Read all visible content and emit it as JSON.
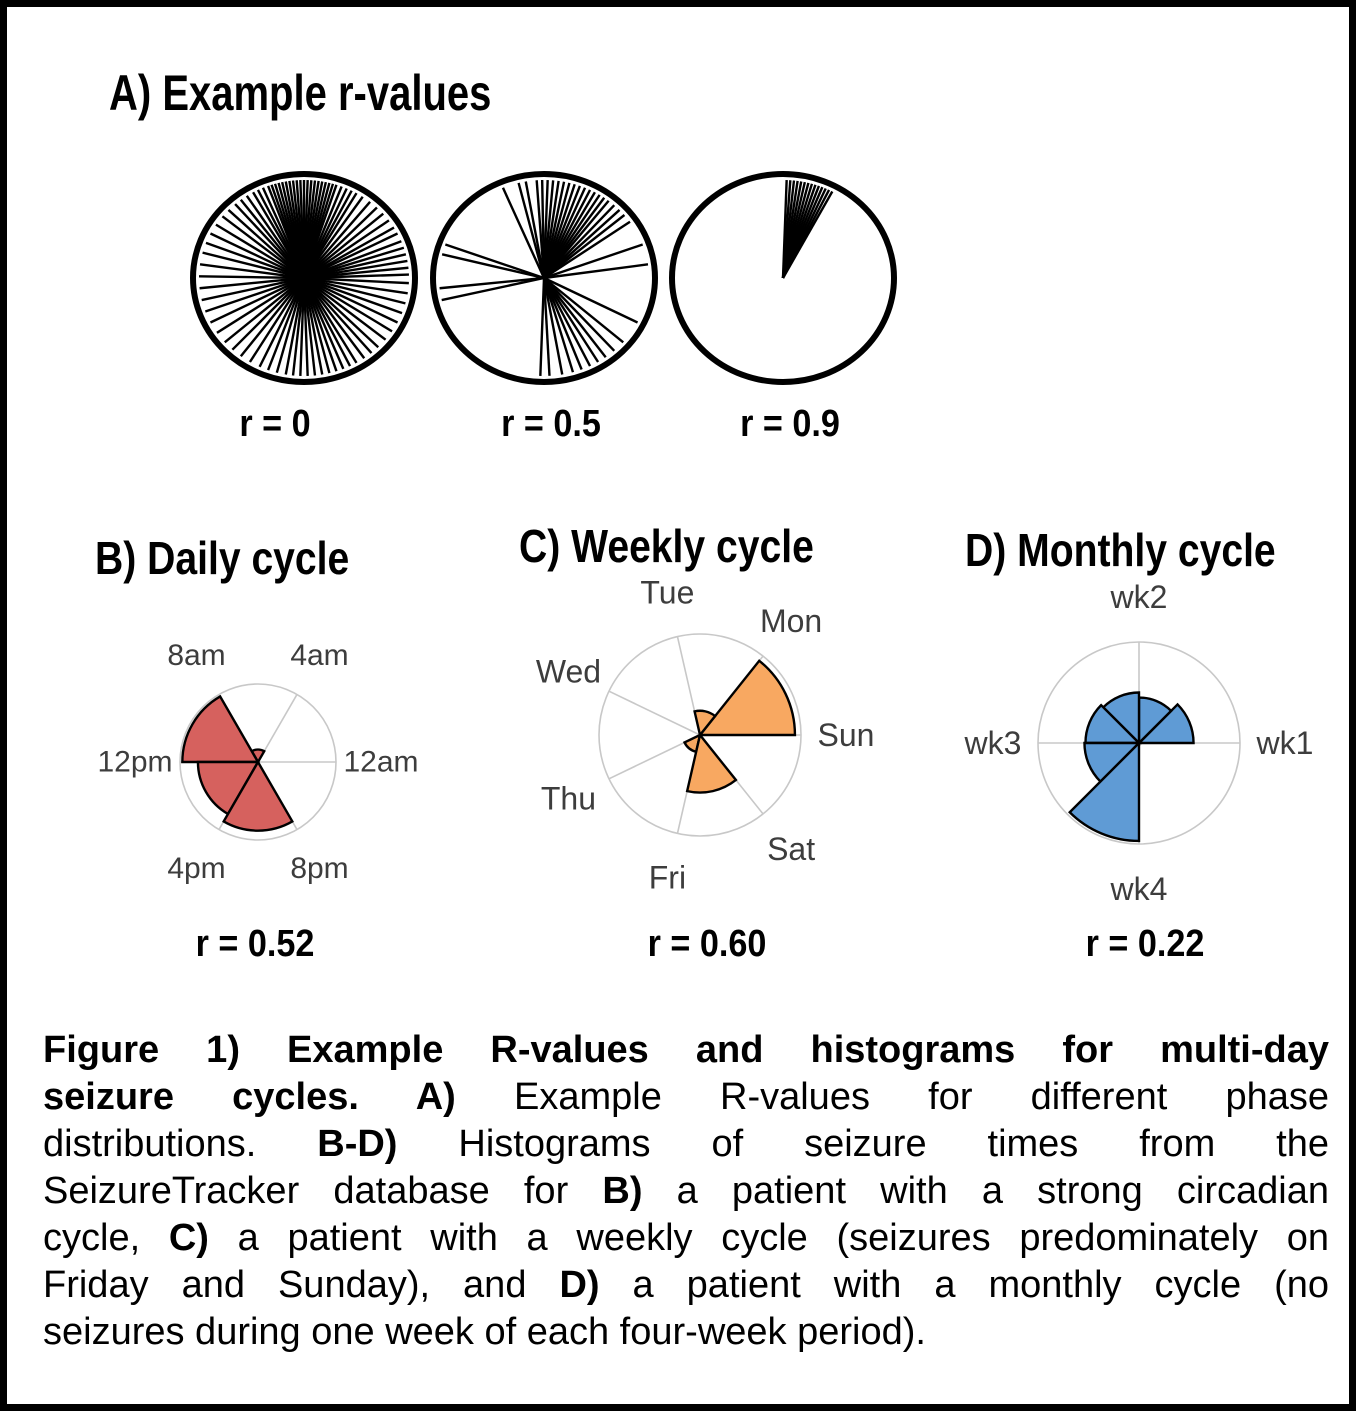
{
  "figure": {
    "colors": {
      "grid": "#c8c8c8",
      "outline": "#000000",
      "axis_label": "#3d3d3d",
      "daily_fill": "#d6615e",
      "weekly_fill": "#f8a861",
      "monthly_fill": "#5f9bd5"
    },
    "caption": {
      "full_text": "Figure 1) Example R-values and histograms for multi-day seizure cycles. A) Example R-values for different phase distributions. B-D) Histograms of seizure times from the SeizureTracker database for B) a patient with a strong circadian cycle, C) a patient with a weekly cycle (seizures predominately on Friday and Sunday), and D) a patient with a monthly cycle (no seizures during one week of each four-week period).",
      "lines": [
        {
          "segments": [
            {
              "text": "Figure 1) Example R-values and histograms for multi-day",
              "bold": true
            }
          ]
        },
        {
          "segments": [
            {
              "text": "seizure cycles. A) ",
              "bold": true
            },
            {
              "text": "Example R-values for different phase",
              "bold": false
            }
          ]
        },
        {
          "segments": [
            {
              "text": "distributions. ",
              "bold": false
            },
            {
              "text": "B-D) ",
              "bold": true
            },
            {
              "text": "Histograms of seizure times from the",
              "bold": false
            }
          ]
        },
        {
          "segments": [
            {
              "text": "SeizureTracker database for ",
              "bold": false
            },
            {
              "text": "B) ",
              "bold": true
            },
            {
              "text": "a patient with a strong circadian",
              "bold": false
            }
          ]
        },
        {
          "segments": [
            {
              "text": "cycle, ",
              "bold": false
            },
            {
              "text": "C) ",
              "bold": true
            },
            {
              "text": "a patient with a weekly cycle (seizures predominately on",
              "bold": false
            }
          ]
        },
        {
          "segments": [
            {
              "text": "Friday and Sunday), and ",
              "bold": false
            },
            {
              "text": "D) ",
              "bold": true
            },
            {
              "text": "a patient with a monthly cycle (no",
              "bold": false
            }
          ]
        },
        {
          "segments": [
            {
              "text": "seizures during one week of each four-week period).",
              "bold": false
            }
          ]
        }
      ]
    }
  },
  "chart_data": [
    {
      "id": "example-r-values",
      "type": "circular-phase-plot",
      "title": "A) Example r-values",
      "description": "Three circles with radial phase lines showing increasing phase concentration",
      "plots": [
        {
          "label": "r = 0",
          "r_value": 0,
          "line_angles_deg": [
            2,
            6,
            10,
            14,
            18,
            22,
            27,
            31,
            36,
            41,
            46,
            51,
            56,
            60,
            63,
            66,
            69,
            72,
            74,
            76,
            78,
            80,
            82,
            84,
            86,
            88,
            90,
            92,
            94,
            96,
            98,
            100,
            102,
            104,
            106,
            108,
            110,
            113,
            116,
            119,
            123,
            127,
            131,
            136,
            141,
            147,
            153,
            159,
            165,
            172,
            179,
            186,
            193,
            200,
            207,
            214,
            221,
            227,
            233,
            239,
            245,
            250,
            255,
            260,
            264,
            268,
            272,
            276,
            280,
            284,
            288,
            292,
            296,
            300,
            305,
            310,
            315,
            321,
            327,
            333,
            339,
            345,
            351,
            357
          ]
        },
        {
          "label": "r = 0.5",
          "r_value": 0.5,
          "line_angles_deg": [
            8,
            20,
            35,
            40,
            44,
            48,
            52,
            55,
            58,
            61,
            64,
            67,
            70,
            73,
            76,
            79,
            82,
            85,
            88,
            91,
            94,
            100,
            104,
            113,
            160,
            166,
            186,
            193,
            268,
            273,
            280,
            286,
            291,
            296,
            301,
            306,
            312,
            319,
            333
          ]
        },
        {
          "label": "r = 0.9",
          "r_value": 0.9,
          "line_angles_deg": [
            62,
            64,
            66,
            68,
            70,
            72,
            74,
            76,
            78,
            80,
            82,
            84,
            86,
            88
          ]
        }
      ]
    },
    {
      "id": "daily-cycle",
      "type": "rose",
      "title": "B) Daily cycle",
      "r_label": "r = 0.52",
      "r_value": 0.52,
      "fill": "#d6615e",
      "axis_labels": [
        {
          "text": "12am",
          "angle_deg": 0
        },
        {
          "text": "4am",
          "angle_deg": 60
        },
        {
          "text": "8am",
          "angle_deg": 120
        },
        {
          "text": "12pm",
          "angle_deg": 180
        },
        {
          "text": "4pm",
          "angle_deg": 240
        },
        {
          "text": "8pm",
          "angle_deg": 300
        }
      ],
      "bins": [
        {
          "start_deg": 0,
          "end_deg": 60,
          "value": 0
        },
        {
          "start_deg": 60,
          "end_deg": 120,
          "value": 0.16
        },
        {
          "start_deg": 120,
          "end_deg": 180,
          "value": 0.97
        },
        {
          "start_deg": 180,
          "end_deg": 240,
          "value": 0.77
        },
        {
          "start_deg": 240,
          "end_deg": 300,
          "value": 0.88
        },
        {
          "start_deg": 300,
          "end_deg": 360,
          "value": 0
        }
      ]
    },
    {
      "id": "weekly-cycle",
      "type": "rose",
      "title": "C) Weekly cycle",
      "r_label": "r = 0.60",
      "r_value": 0.6,
      "fill": "#f8a861",
      "axis_labels": [
        {
          "text": "Sun",
          "angle_deg": 0
        },
        {
          "text": "Mon",
          "angle_deg": 51.4
        },
        {
          "text": "Tue",
          "angle_deg": 102.9
        },
        {
          "text": "Wed",
          "angle_deg": 154.3
        },
        {
          "text": "Thu",
          "angle_deg": 205.7
        },
        {
          "text": "Fri",
          "angle_deg": 257.1
        },
        {
          "text": "Sat",
          "angle_deg": 308.6
        }
      ],
      "bins": [
        {
          "start_deg": 0,
          "end_deg": 51.4,
          "value": 0.94
        },
        {
          "start_deg": 51.4,
          "end_deg": 102.9,
          "value": 0.24
        },
        {
          "start_deg": 102.9,
          "end_deg": 154.3,
          "value": 0
        },
        {
          "start_deg": 154.3,
          "end_deg": 205.7,
          "value": 0
        },
        {
          "start_deg": 205.7,
          "end_deg": 257.1,
          "value": 0.17
        },
        {
          "start_deg": 257.1,
          "end_deg": 308.6,
          "value": 0.57
        },
        {
          "start_deg": 308.6,
          "end_deg": 360,
          "value": 0
        }
      ]
    },
    {
      "id": "monthly-cycle",
      "type": "rose",
      "title": "D) Monthly cycle",
      "r_label": "r = 0.22",
      "r_value": 0.22,
      "fill": "#5f9bd5",
      "axis_labels": [
        {
          "text": "wk1",
          "angle_deg": 0
        },
        {
          "text": "wk2",
          "angle_deg": 90
        },
        {
          "text": "wk3",
          "angle_deg": 180
        },
        {
          "text": "wk4",
          "angle_deg": 270
        }
      ],
      "bins": [
        {
          "start_deg": 0,
          "end_deg": 45,
          "value": 0.54
        },
        {
          "start_deg": 45,
          "end_deg": 90,
          "value": 0.45
        },
        {
          "start_deg": 90,
          "end_deg": 135,
          "value": 0.5
        },
        {
          "start_deg": 135,
          "end_deg": 180,
          "value": 0.53
        },
        {
          "start_deg": 180,
          "end_deg": 225,
          "value": 0.54
        },
        {
          "start_deg": 225,
          "end_deg": 270,
          "value": 0.97
        },
        {
          "start_deg": 270,
          "end_deg": 315,
          "value": 0
        },
        {
          "start_deg": 315,
          "end_deg": 360,
          "value": 0
        }
      ]
    }
  ]
}
